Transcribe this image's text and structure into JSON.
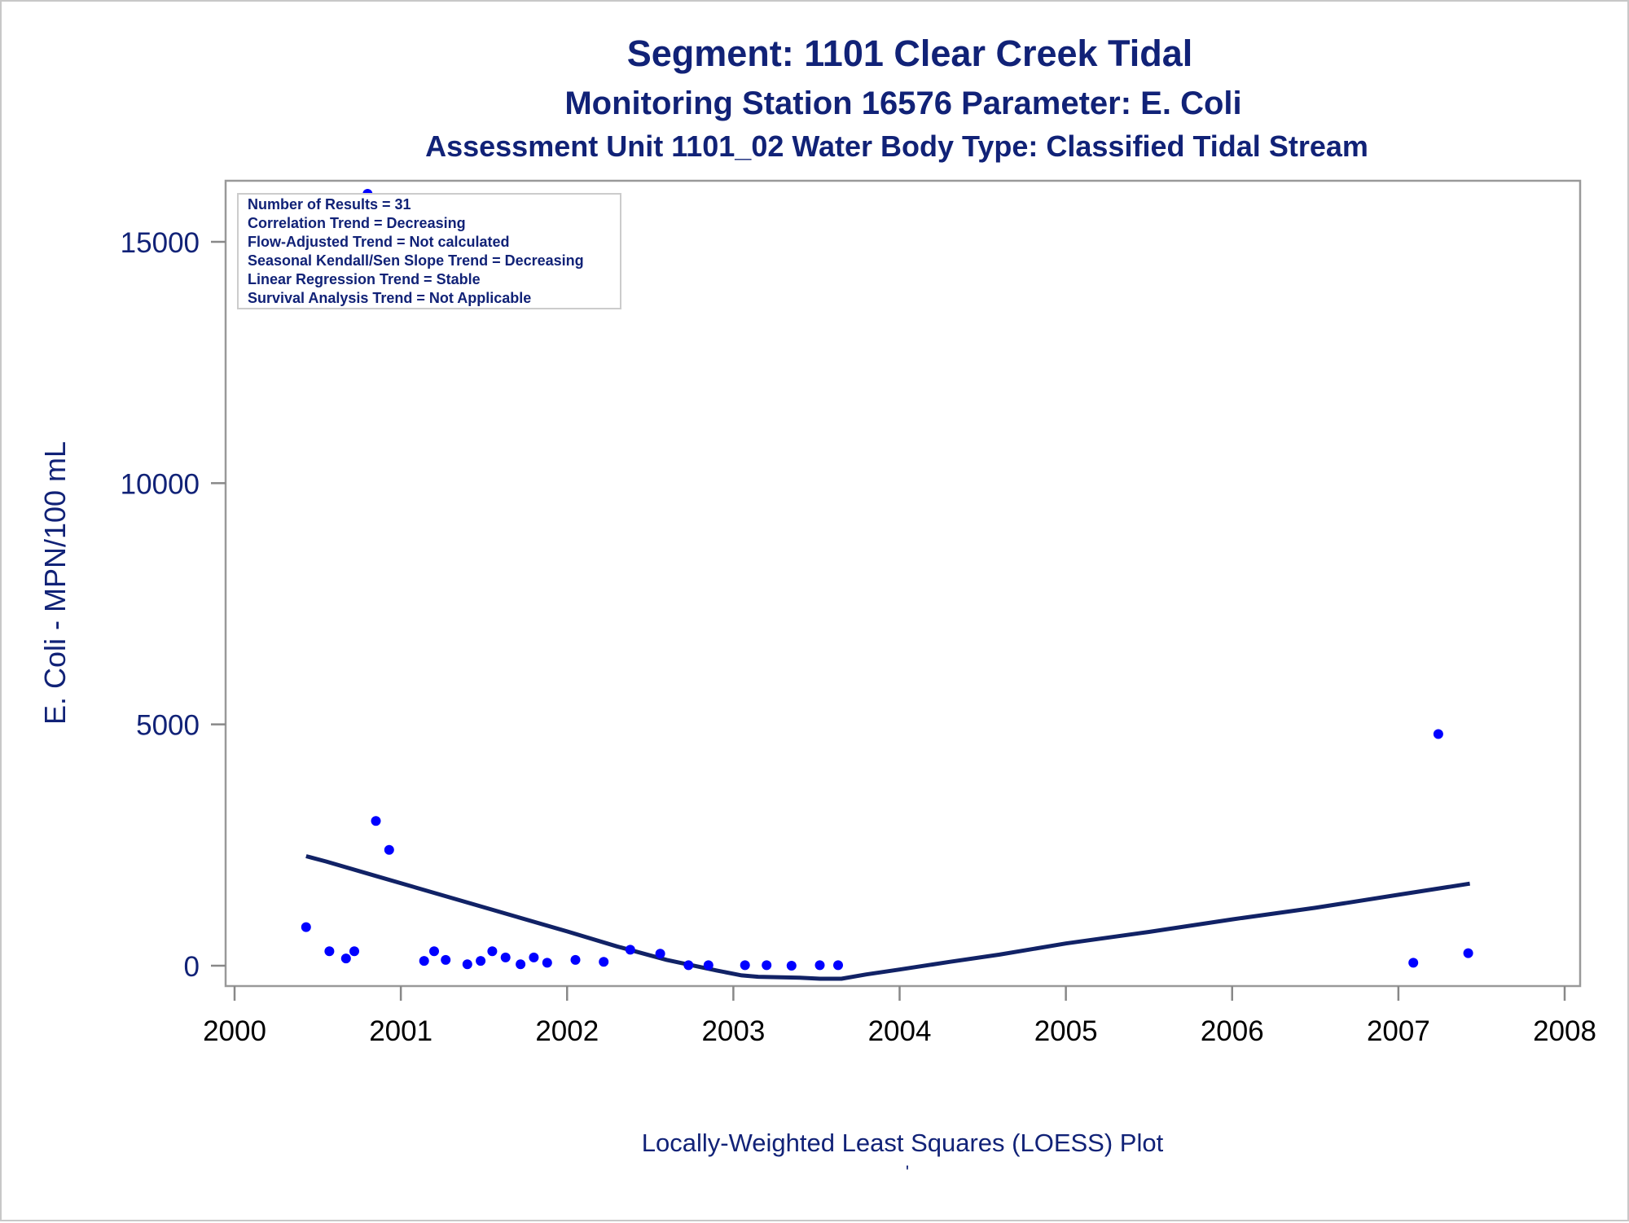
{
  "chart_data": {
    "type": "scatter",
    "title": "Segment: 1101  Clear Creek Tidal",
    "subtitle": "Monitoring Station 16576 Parameter: E. Coli",
    "subtitle2": "Assessment Unit 1101_02   Water Body Type: Classified Tidal Stream",
    "ylabel": "E. Coli - MPN/100 mL",
    "xlabel": "Locally-Weighted Least Squares (LOESS) Plot",
    "footnote": "'",
    "xlim": [
      2000,
      2008
    ],
    "ylim": [
      -450,
      16300
    ],
    "x_ticks": [
      2000,
      2001,
      2002,
      2003,
      2004,
      2005,
      2006,
      2007,
      2008
    ],
    "y_ticks": [
      0,
      5000,
      10000,
      15000
    ],
    "grid": false,
    "inset": {
      "position": "top-left",
      "lines": [
        "Number of Results = 31",
        "Correlation Trend = Decreasing",
        "Flow-Adjusted Trend = Not calculated",
        "Seasonal Kendall/Sen Slope Trend = Decreasing",
        "Linear Regression Trend = Stable",
        "Survival Analysis Trend = Not Applicable"
      ]
    },
    "series": [
      {
        "type": "scatter",
        "color": "#0000ff",
        "points": [
          [
            2000.43,
            800
          ],
          [
            2000.57,
            300
          ],
          [
            2000.67,
            150
          ],
          [
            2000.72,
            300
          ],
          [
            2000.8,
            16000
          ],
          [
            2000.85,
            3000
          ],
          [
            2000.93,
            2400
          ],
          [
            2001.14,
            100
          ],
          [
            2001.2,
            300
          ],
          [
            2001.27,
            120
          ],
          [
            2001.4,
            30
          ],
          [
            2001.48,
            100
          ],
          [
            2001.55,
            300
          ],
          [
            2001.63,
            170
          ],
          [
            2001.72,
            30
          ],
          [
            2001.8,
            170
          ],
          [
            2001.88,
            60
          ],
          [
            2002.05,
            120
          ],
          [
            2002.22,
            80
          ],
          [
            2002.38,
            330
          ],
          [
            2002.56,
            250
          ],
          [
            2002.73,
            10
          ],
          [
            2002.85,
            10
          ],
          [
            2003.07,
            10
          ],
          [
            2003.2,
            10
          ],
          [
            2003.35,
            0
          ],
          [
            2003.52,
            10
          ],
          [
            2003.63,
            10
          ],
          [
            2007.09,
            60
          ],
          [
            2007.24,
            4800
          ],
          [
            2007.42,
            260
          ]
        ]
      },
      {
        "type": "line",
        "color": "#112266",
        "points": [
          [
            2000.43,
            2270
          ],
          [
            2000.55,
            2160
          ],
          [
            2000.85,
            1860
          ],
          [
            2001.1,
            1610
          ],
          [
            2001.4,
            1310
          ],
          [
            2001.7,
            1010
          ],
          [
            2002.0,
            710
          ],
          [
            2002.3,
            400
          ],
          [
            2002.6,
            120
          ],
          [
            2002.9,
            -100
          ],
          [
            2003.05,
            -200
          ],
          [
            2003.15,
            -230
          ],
          [
            2003.4,
            -250
          ],
          [
            2003.52,
            -270
          ],
          [
            2003.65,
            -270
          ],
          [
            2003.8,
            -180
          ],
          [
            2004.0,
            -80
          ],
          [
            2004.3,
            80
          ],
          [
            2004.6,
            230
          ],
          [
            2005.0,
            460
          ],
          [
            2005.5,
            700
          ],
          [
            2006.0,
            960
          ],
          [
            2006.5,
            1200
          ],
          [
            2007.0,
            1470
          ],
          [
            2007.43,
            1700
          ]
        ]
      }
    ]
  }
}
